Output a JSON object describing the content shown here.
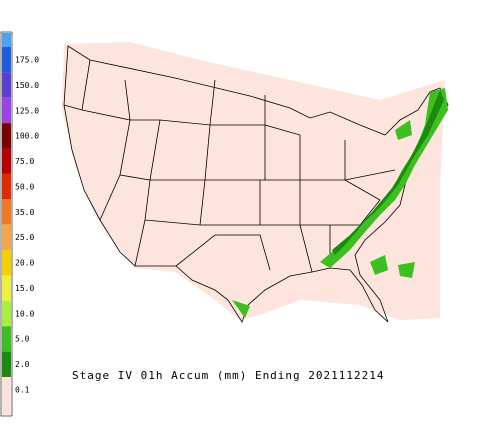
{
  "legend": {
    "labels": [
      "175.0",
      "150.0",
      "125.0",
      "100.0",
      "75.0",
      "50.0",
      "35.0",
      "25.0",
      "20.0",
      "15.0",
      "10.0",
      "5.0",
      "2.0",
      "0.1"
    ],
    "colors": [
      "#4aa2f2",
      "#1e5fe0",
      "#5b3fd0",
      "#9a44e8",
      "#7a0000",
      "#b80000",
      "#e02a00",
      "#f07a20",
      "#f2a84a",
      "#f4d000",
      "#eef040",
      "#a8f040",
      "#3cc020",
      "#1c8a10",
      "#fbe2da"
    ]
  },
  "caption": "Stage IV 01h Accum (mm) Ending 2021112214"
}
